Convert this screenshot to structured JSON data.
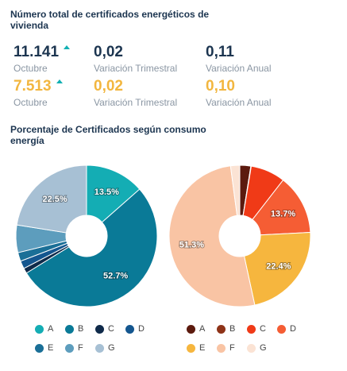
{
  "header": {
    "title": "Número total de certificados energéticos de vivienda"
  },
  "stats": {
    "row1": {
      "total": "11.141",
      "total_label": "Octubre",
      "trimestral": "0,02",
      "trimestral_label": "Variación Trimestral",
      "anual": "0,11",
      "anual_label": "Variación Anual"
    },
    "row2": {
      "total": "7.513",
      "total_label": "Octubre",
      "trimestral": "0,02",
      "trimestral_label": "Variación Trimestral",
      "anual": "0,10",
      "anual_label": "Variación Anual"
    }
  },
  "section2": {
    "title": "Porcentaje de Certificados según consumo energía"
  },
  "chart_data": [
    {
      "type": "pie",
      "categories": [
        "A",
        "B",
        "C",
        "D",
        "E",
        "F",
        "G"
      ],
      "values": [
        13.5,
        52.7,
        1.2,
        1.8,
        2.0,
        6.3,
        22.5
      ],
      "labels": [
        "13.5%",
        "52.7%",
        "",
        "",
        "",
        "",
        "22.5%"
      ],
      "colors": [
        "#14adb4",
        "#0a7a97",
        "#0f2a4a",
        "#14568f",
        "#1a6f97",
        "#5d9dbd",
        "#a7c0d4"
      ]
    },
    {
      "type": "pie",
      "categories": [
        "A",
        "B",
        "C",
        "D",
        "E",
        "F",
        "G"
      ],
      "values": [
        2.5,
        0.1,
        7.9,
        13.7,
        22.4,
        51.3,
        2.1
      ],
      "labels": [
        "",
        "",
        "",
        "13.7%",
        "22.4%",
        "51.3%",
        ""
      ],
      "colors": [
        "#5c1a0e",
        "#8e3318",
        "#f03a17",
        "#f55d34",
        "#f6b63e",
        "#f9c4a4",
        "#fbe3d4"
      ]
    }
  ]
}
